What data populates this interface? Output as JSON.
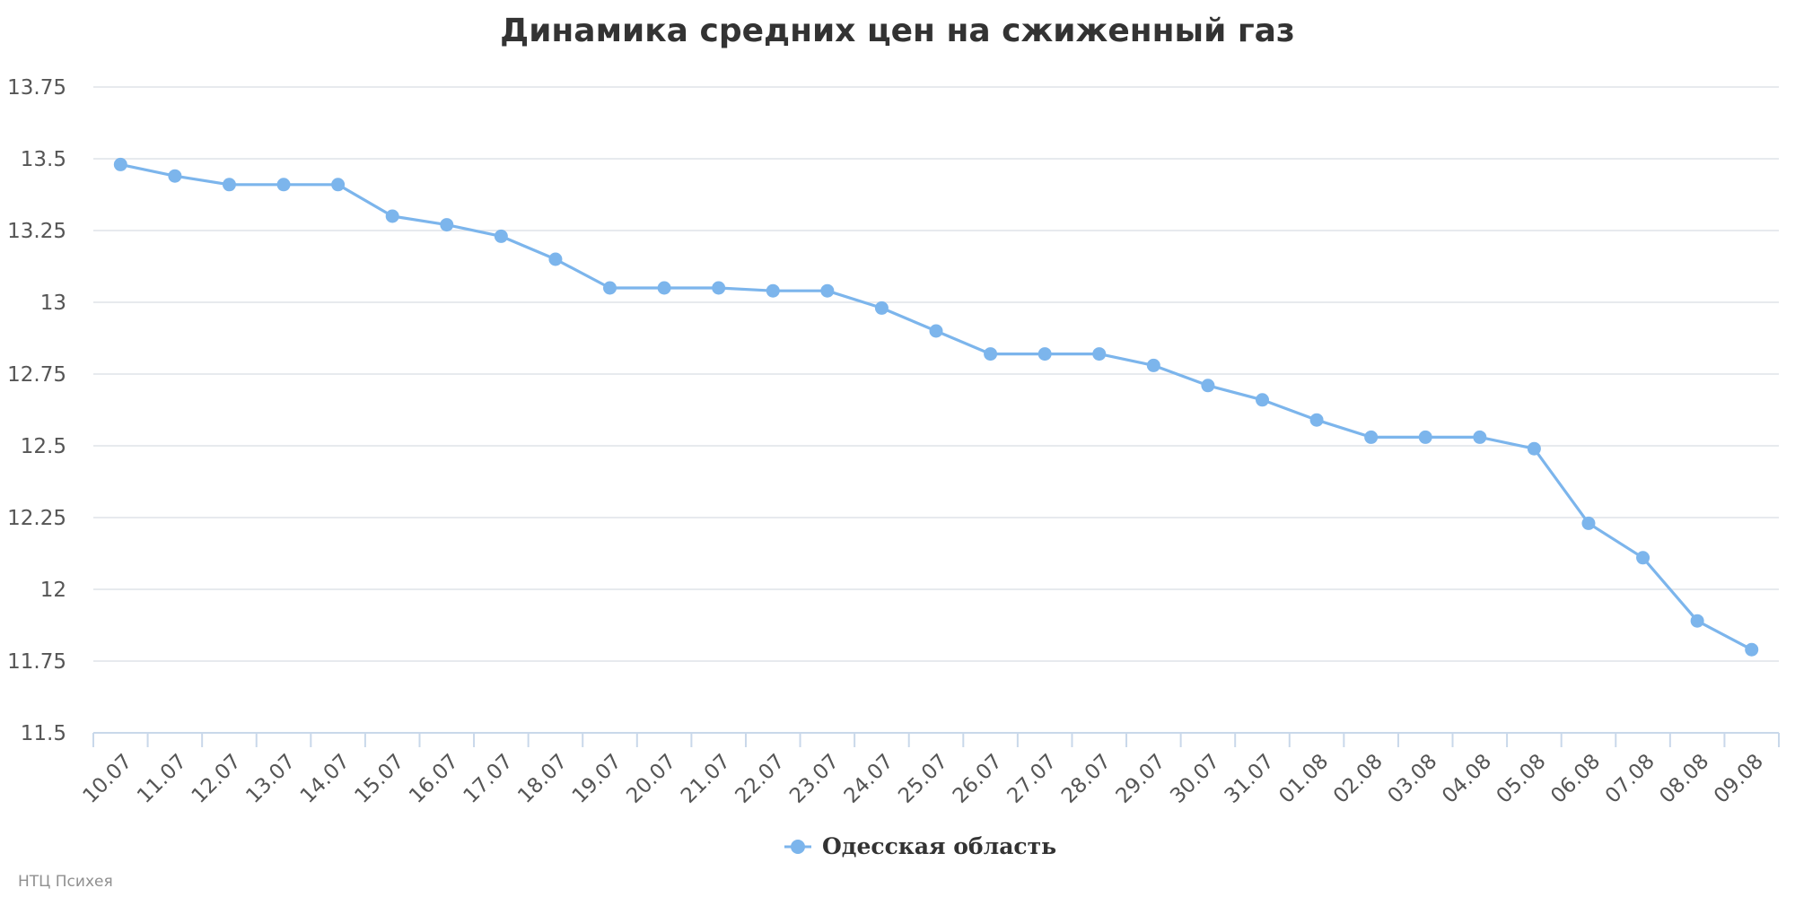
{
  "chart_data": {
    "type": "line",
    "title": "Динамика средних цен на сжиженный газ",
    "xlabel": "",
    "ylabel": "",
    "ylim": [
      11.5,
      13.75
    ],
    "yticks": [
      "11.5",
      "11.75",
      "12",
      "12.25",
      "12.5",
      "12.75",
      "13",
      "13.25",
      "13.5",
      "13.75"
    ],
    "ytick_values": [
      11.5,
      11.75,
      12,
      12.25,
      12.5,
      12.75,
      13,
      13.25,
      13.5,
      13.75
    ],
    "grid": true,
    "legend_position": "bottom-center",
    "categories": [
      "10.07",
      "11.07",
      "12.07",
      "13.07",
      "14.07",
      "15.07",
      "16.07",
      "17.07",
      "18.07",
      "19.07",
      "20.07",
      "21.07",
      "22.07",
      "23.07",
      "24.07",
      "25.07",
      "26.07",
      "27.07",
      "28.07",
      "29.07",
      "30.07",
      "31.07",
      "01.08",
      "02.08",
      "03.08",
      "04.08",
      "05.08",
      "06.08",
      "07.08",
      "08.08",
      "09.08"
    ],
    "series": [
      {
        "name": "Одесская область",
        "color": "#7cb5ec",
        "values": [
          13.48,
          13.44,
          13.41,
          13.41,
          13.41,
          13.3,
          13.27,
          13.23,
          13.15,
          13.05,
          13.05,
          13.05,
          13.04,
          13.04,
          12.98,
          12.9,
          12.82,
          12.82,
          12.82,
          12.78,
          12.71,
          12.66,
          12.59,
          12.53,
          12.53,
          12.53,
          12.49,
          12.23,
          12.11,
          11.89,
          11.79
        ]
      }
    ]
  },
  "credits": "НТЦ Психея"
}
